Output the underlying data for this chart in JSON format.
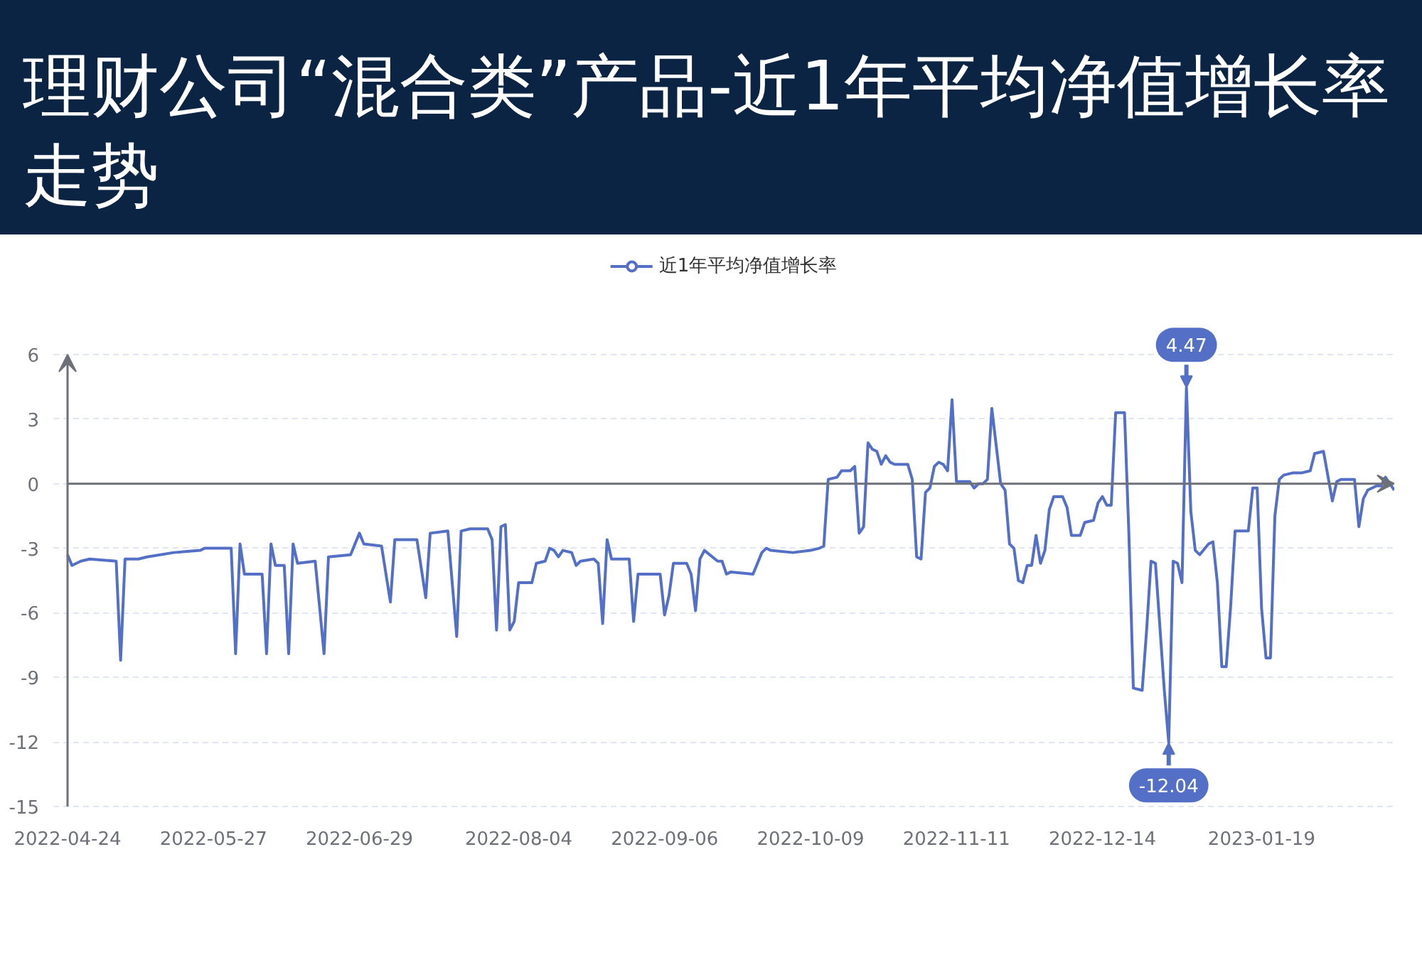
{
  "chart_data": {
    "type": "line",
    "title": "理财公司“混合类”产品-近1年平均净值增长率走势",
    "x": [
      "2022-04-24",
      "2022-04-25",
      "2022-04-27",
      "2022-04-29",
      "2022-05-05",
      "2022-05-06",
      "2022-05-07",
      "2022-05-10",
      "2022-05-12",
      "2022-05-18",
      "2022-05-24",
      "2022-05-25",
      "2022-05-31",
      "2022-06-01",
      "2022-06-02",
      "2022-06-03",
      "2022-06-07",
      "2022-06-08",
      "2022-06-09",
      "2022-06-10",
      "2022-06-12",
      "2022-06-13",
      "2022-06-14",
      "2022-06-15",
      "2022-06-19",
      "2022-06-21",
      "2022-06-22",
      "2022-06-27",
      "2022-06-29",
      "2022-06-30",
      "2022-07-04",
      "2022-07-06",
      "2022-07-07",
      "2022-07-12",
      "2022-07-14",
      "2022-07-15",
      "2022-07-19",
      "2022-07-21",
      "2022-07-22",
      "2022-07-24",
      "2022-07-28",
      "2022-07-29",
      "2022-07-30",
      "2022-07-31",
      "2022-08-01",
      "2022-08-02",
      "2022-08-03",
      "2022-08-04",
      "2022-08-07",
      "2022-08-08",
      "2022-08-10",
      "2022-08-11",
      "2022-08-12",
      "2022-08-13",
      "2022-08-14",
      "2022-08-16",
      "2022-08-17",
      "2022-08-18",
      "2022-08-21",
      "2022-08-22",
      "2022-08-23",
      "2022-08-24",
      "2022-08-25",
      "2022-08-29",
      "2022-08-30",
      "2022-08-31",
      "2022-09-05",
      "2022-09-06",
      "2022-09-07",
      "2022-09-08",
      "2022-09-11",
      "2022-09-12",
      "2022-09-13",
      "2022-09-14",
      "2022-09-15",
      "2022-09-18",
      "2022-09-19",
      "2022-09-20",
      "2022-09-21",
      "2022-09-26",
      "2022-09-28",
      "2022-09-29",
      "2022-09-30",
      "2022-10-05",
      "2022-10-09",
      "2022-10-11",
      "2022-10-12",
      "2022-10-13",
      "2022-10-15",
      "2022-10-16",
      "2022-10-18",
      "2022-10-19",
      "2022-10-20",
      "2022-10-21",
      "2022-10-22",
      "2022-10-23",
      "2022-10-24",
      "2022-10-25",
      "2022-10-26",
      "2022-10-27",
      "2022-10-28",
      "2022-10-31",
      "2022-11-01",
      "2022-11-02",
      "2022-11-03",
      "2022-11-04",
      "2022-11-05",
      "2022-11-06",
      "2022-11-07",
      "2022-11-08",
      "2022-11-09",
      "2022-11-10",
      "2022-11-11",
      "2022-11-14",
      "2022-11-15",
      "2022-11-16",
      "2022-11-17",
      "2022-11-18",
      "2022-11-19",
      "2022-11-21",
      "2022-11-22",
      "2022-11-23",
      "2022-11-24",
      "2022-11-25",
      "2022-11-26",
      "2022-11-27",
      "2022-11-28",
      "2022-11-29",
      "2022-11-30",
      "2022-12-01",
      "2022-12-02",
      "2022-12-03",
      "2022-12-05",
      "2022-12-06",
      "2022-12-07",
      "2022-12-09",
      "2022-12-10",
      "2022-12-12",
      "2022-12-13",
      "2022-12-14",
      "2022-12-15",
      "2022-12-16",
      "2022-12-17",
      "2022-12-19",
      "2022-12-20",
      "2022-12-21",
      "2022-12-23",
      "2022-12-24",
      "2022-12-25",
      "2022-12-26",
      "2022-12-28",
      "2022-12-29",
      "2022-12-30",
      "2022-12-31",
      "2023-01-01",
      "2023-01-02",
      "2023-01-03",
      "2023-01-04",
      "2023-01-05",
      "2023-01-07",
      "2023-01-08",
      "2023-01-09",
      "2023-01-10",
      "2023-01-11",
      "2023-01-12",
      "2023-01-13",
      "2023-01-16",
      "2023-01-17",
      "2023-01-18",
      "2023-01-19",
      "2023-01-20",
      "2023-01-21",
      "2023-01-22",
      "2023-01-23",
      "2023-01-24",
      "2023-01-26",
      "2023-01-28",
      "2023-01-30",
      "2023-01-31",
      "2023-02-02",
      "2023-02-04",
      "2023-02-05",
      "2023-02-06",
      "2023-02-09",
      "2023-02-10",
      "2023-02-11",
      "2023-02-12",
      "2023-02-14",
      "2023-02-15",
      "2023-02-16",
      "2023-02-17",
      "2023-02-18"
    ],
    "series": [
      {
        "name": "近1年平均净值增长率",
        "color": "#5470c6",
        "values": [
          -3.3,
          -3.8,
          -3.6,
          -3.5,
          -3.6,
          -8.2,
          -3.5,
          -3.5,
          -3.4,
          -3.2,
          -3.1,
          -3.0,
          -3.0,
          -7.9,
          -2.8,
          -4.2,
          -4.2,
          -7.9,
          -2.8,
          -3.8,
          -3.8,
          -7.9,
          -2.8,
          -3.7,
          -3.6,
          -7.9,
          -3.4,
          -3.3,
          -2.3,
          -2.8,
          -2.9,
          -5.5,
          -2.6,
          -2.6,
          -5.3,
          -2.3,
          -2.2,
          -7.1,
          -2.2,
          -2.1,
          -2.1,
          -2.6,
          -6.8,
          -2.0,
          -1.9,
          -6.8,
          -6.4,
          -4.6,
          -4.6,
          -3.7,
          -3.6,
          -3.0,
          -3.1,
          -3.4,
          -3.1,
          -3.2,
          -3.8,
          -3.6,
          -3.5,
          -3.7,
          -6.5,
          -2.6,
          -3.5,
          -3.5,
          -6.4,
          -4.2,
          -4.2,
          -6.1,
          -5.2,
          -3.7,
          -3.7,
          -4.2,
          -5.9,
          -3.5,
          -3.1,
          -3.6,
          -3.6,
          -4.2,
          -4.1,
          -4.2,
          -3.2,
          -3.0,
          -3.1,
          -3.2,
          -3.1,
          -3.0,
          -2.9,
          0.2,
          0.3,
          0.6,
          0.6,
          0.8,
          -2.3,
          -2.0,
          1.9,
          1.6,
          1.5,
          0.9,
          1.3,
          1.0,
          0.9,
          0.9,
          0.2,
          -3.4,
          -3.5,
          -0.4,
          -0.2,
          0.8,
          1.0,
          0.9,
          0.6,
          3.9,
          0.1,
          0.1,
          -0.2,
          0,
          0,
          0.2,
          3.5,
          0,
          -0.3,
          -2.8,
          -3.0,
          -4.5,
          -4.6,
          -3.8,
          -3.8,
          -2.4,
          -3.7,
          -3.1,
          -1.2,
          -0.6,
          -0.6,
          -1.1,
          -2.4,
          -2.4,
          -1.8,
          -1.7,
          -0.9,
          -0.6,
          -1.0,
          -1.0,
          3.3,
          3.3,
          -2.4,
          -9.5,
          -9.6,
          -6.8,
          -3.6,
          -3.7,
          -9.6,
          -12.04,
          -3.6,
          -3.7,
          -4.6,
          4.47,
          -1.3,
          -3.1,
          -3.3,
          -2.8,
          -2.7,
          -4.6,
          -8.5,
          -8.5,
          -5.7,
          -2.2,
          -2.2,
          -0.2,
          -0.2,
          -5.8,
          -8.1,
          -8.1,
          -1.5,
          0.2,
          0.4,
          0.5,
          0.5,
          0.6,
          1.4,
          1.5,
          -0.8,
          0.1,
          0.2,
          0.2,
          -2.0,
          -0.7,
          -0.3,
          -0.1,
          -0.1,
          0.3,
          0,
          -0.3
        ]
      }
    ],
    "xlim": [
      "2022-04-24",
      "2023-02-18"
    ],
    "xticks": [
      "2022-04-24",
      "2022-05-27",
      "2022-06-29",
      "2022-08-04",
      "2022-09-06",
      "2022-10-09",
      "2022-11-11",
      "2022-12-14",
      "2023-01-19"
    ],
    "ylim": [
      -15,
      6
    ],
    "yticks": [
      -15,
      -12,
      -9,
      -6,
      -3,
      0,
      3,
      6
    ],
    "grid": "y",
    "legend": "top",
    "annotations": [
      {
        "text": "4.47",
        "x": "2023-01-02",
        "y": 4.47
      },
      {
        "text": "-12.04",
        "x": "2022-12-29",
        "y": -12.04
      }
    ]
  }
}
